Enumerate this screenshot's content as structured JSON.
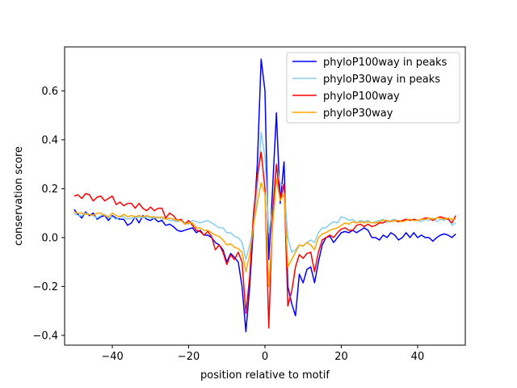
{
  "chart_data": {
    "type": "line",
    "title": "",
    "xlabel": "position relative to motif",
    "ylabel": "conservation score",
    "xlim": [
      -52.5,
      52.5
    ],
    "ylim": [
      -0.44,
      0.78
    ],
    "xticks": [
      -40,
      -20,
      0,
      20,
      40
    ],
    "yticks": [
      -0.4,
      -0.2,
      0.0,
      0.2,
      0.4,
      0.6
    ],
    "ytick_labels": [
      "−0.4",
      "−0.2",
      "0.0",
      "0.2",
      "0.4",
      "0.6"
    ],
    "xtick_labels": [
      "−40",
      "−20",
      "0",
      "20",
      "40"
    ],
    "legend_position": "upper right",
    "x": [
      -50,
      -49,
      -48,
      -47,
      -46,
      -45,
      -44,
      -43,
      -42,
      -41,
      -40,
      -39,
      -38,
      -37,
      -36,
      -35,
      -34,
      -33,
      -32,
      -31,
      -30,
      -29,
      -28,
      -27,
      -26,
      -25,
      -24,
      -23,
      -22,
      -21,
      -20,
      -19,
      -18,
      -17,
      -16,
      -15,
      -14,
      -13,
      -12,
      -11,
      -10,
      -9,
      -8,
      -7,
      -6,
      -5,
      -4,
      -3,
      -2,
      -1,
      0,
      1,
      2,
      3,
      4,
      5,
      6,
      7,
      8,
      9,
      10,
      11,
      12,
      13,
      14,
      15,
      16,
      17,
      18,
      19,
      20,
      21,
      22,
      23,
      24,
      25,
      26,
      27,
      28,
      29,
      30,
      31,
      32,
      33,
      34,
      35,
      36,
      37,
      38,
      39,
      40,
      41,
      42,
      43,
      44,
      45,
      46,
      47,
      48,
      49,
      50
    ],
    "series": [
      {
        "name": "phyloP100way in peaks",
        "color": "#0000ff",
        "values": [
          0.115,
          0.095,
          0.08,
          0.105,
          0.09,
          0.1,
          0.075,
          0.085,
          0.09,
          0.07,
          0.09,
          0.08,
          0.075,
          0.075,
          0.05,
          0.06,
          0.085,
          0.06,
          0.09,
          0.075,
          0.07,
          0.08,
          0.065,
          0.07,
          0.05,
          0.055,
          0.045,
          0.03,
          0.025,
          0.03,
          0.035,
          0.04,
          0.02,
          0.03,
          0.01,
          0.01,
          0.0,
          -0.02,
          -0.03,
          -0.05,
          -0.1,
          -0.065,
          -0.08,
          -0.1,
          -0.2,
          -0.385,
          -0.2,
          0.05,
          0.3,
          0.73,
          0.6,
          -0.09,
          0.2,
          0.51,
          0.14,
          0.31,
          -0.2,
          -0.27,
          -0.32,
          -0.15,
          -0.185,
          -0.13,
          -0.12,
          -0.185,
          -0.1,
          -0.03,
          0.0,
          0.005,
          -0.02,
          0.0,
          0.02,
          0.025,
          0.02,
          0.03,
          0.02,
          0.03,
          0.04,
          0.03,
          0.0,
          0.0,
          -0.01,
          0.01,
          0.0,
          0.02,
          0.01,
          -0.01,
          0.0,
          0.02,
          0.0,
          0.02,
          0.0,
          0.01,
          0.0,
          0.0,
          -0.015,
          0.0,
          0.01,
          0.015,
          0.01,
          0.0,
          0.015
        ]
      },
      {
        "name": "phyloP30way in peaks",
        "color": "#87ceeb",
        "values": [
          0.1,
          0.09,
          0.09,
          0.1,
          0.095,
          0.09,
          0.08,
          0.09,
          0.095,
          0.08,
          0.085,
          0.075,
          0.085,
          0.085,
          0.075,
          0.08,
          0.08,
          0.085,
          0.08,
          0.085,
          0.08,
          0.08,
          0.085,
          0.075,
          0.08,
          0.07,
          0.07,
          0.065,
          0.07,
          0.06,
          0.055,
          0.07,
          0.065,
          0.06,
          0.065,
          0.07,
          0.06,
          0.05,
          0.04,
          0.04,
          0.02,
          0.02,
          0.005,
          0.0,
          -0.02,
          -0.09,
          -0.03,
          0.05,
          0.2,
          0.43,
          0.33,
          0.02,
          0.12,
          0.3,
          0.22,
          0.21,
          0.0,
          -0.06,
          -0.05,
          -0.03,
          -0.035,
          -0.02,
          -0.01,
          -0.02,
          0.02,
          0.04,
          0.04,
          0.055,
          0.065,
          0.06,
          0.085,
          0.08,
          0.07,
          0.075,
          0.06,
          0.07,
          0.065,
          0.07,
          0.06,
          0.065,
          0.07,
          0.075,
          0.06,
          0.07,
          0.075,
          0.065,
          0.07,
          0.075,
          0.07,
          0.075,
          0.07,
          0.065,
          0.075,
          0.07,
          0.08,
          0.065,
          0.075,
          0.07,
          0.08,
          0.05,
          0.06
        ]
      },
      {
        "name": "phyloP100way",
        "color": "#ff0000",
        "values": [
          0.17,
          0.175,
          0.16,
          0.18,
          0.175,
          0.15,
          0.165,
          0.17,
          0.15,
          0.16,
          0.17,
          0.135,
          0.145,
          0.13,
          0.14,
          0.14,
          0.12,
          0.14,
          0.12,
          0.11,
          0.125,
          0.11,
          0.12,
          0.12,
          0.08,
          0.1,
          0.09,
          0.07,
          0.075,
          0.055,
          0.07,
          0.05,
          0.03,
          0.025,
          0.01,
          0.025,
          0.005,
          -0.05,
          -0.03,
          -0.06,
          -0.11,
          -0.07,
          -0.09,
          -0.06,
          -0.1,
          -0.31,
          -0.16,
          0.1,
          0.25,
          0.35,
          0.2,
          -0.37,
          0.1,
          0.3,
          0.15,
          0.22,
          -0.28,
          -0.22,
          -0.12,
          -0.07,
          -0.085,
          -0.065,
          -0.06,
          -0.14,
          -0.06,
          -0.01,
          0.0,
          0.01,
          0.0,
          0.02,
          0.035,
          0.04,
          0.03,
          0.03,
          0.05,
          0.055,
          0.045,
          0.055,
          0.045,
          0.05,
          0.06,
          0.06,
          0.07,
          0.065,
          0.07,
          0.065,
          0.07,
          0.075,
          0.07,
          0.075,
          0.07,
          0.075,
          0.08,
          0.08,
          0.07,
          0.08,
          0.085,
          0.08,
          0.075,
          0.06,
          0.09
        ]
      },
      {
        "name": "phyloP30way",
        "color": "#ffa500",
        "values": [
          0.105,
          0.1,
          0.1,
          0.095,
          0.095,
          0.09,
          0.1,
          0.1,
          0.09,
          0.085,
          0.1,
          0.09,
          0.085,
          0.095,
          0.085,
          0.09,
          0.085,
          0.09,
          0.085,
          0.09,
          0.085,
          0.085,
          0.08,
          0.085,
          0.075,
          0.08,
          0.075,
          0.07,
          0.07,
          0.055,
          0.06,
          0.06,
          0.04,
          0.04,
          0.03,
          0.03,
          0.02,
          0.01,
          0.005,
          -0.01,
          -0.03,
          -0.025,
          -0.04,
          -0.045,
          -0.06,
          -0.14,
          -0.07,
          0.05,
          0.14,
          0.225,
          0.18,
          -0.2,
          0.05,
          0.24,
          0.15,
          0.18,
          -0.12,
          -0.09,
          -0.06,
          -0.03,
          -0.035,
          -0.02,
          -0.03,
          -0.05,
          0.0,
          0.015,
          0.02,
          0.03,
          0.035,
          0.04,
          0.05,
          0.06,
          0.055,
          0.065,
          0.06,
          0.065,
          0.06,
          0.065,
          0.06,
          0.06,
          0.065,
          0.07,
          0.07,
          0.065,
          0.07,
          0.07,
          0.065,
          0.07,
          0.075,
          0.07,
          0.07,
          0.075,
          0.075,
          0.08,
          0.075,
          0.08,
          0.08,
          0.075,
          0.08,
          0.075,
          0.075
        ]
      }
    ]
  }
}
